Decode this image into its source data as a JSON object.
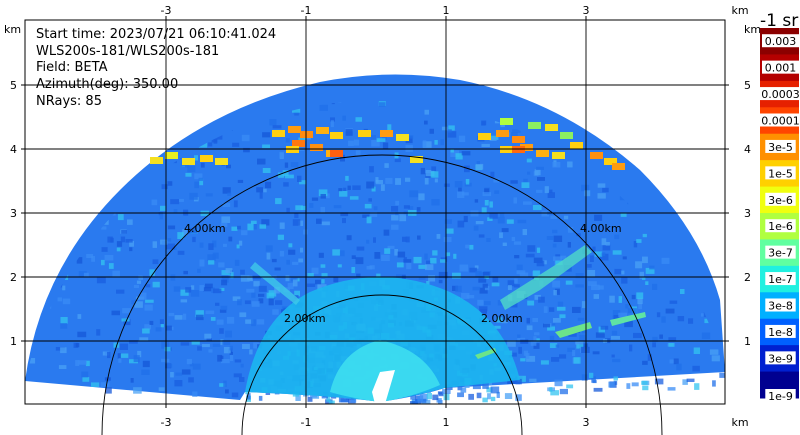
{
  "info": {
    "start_time": "Start time: 2023/07/21 06:10:41.024",
    "instrument": "WLS200s-181/WLS200s-181",
    "field": "Field: BETA",
    "azimuth": "Azimuth(deg): 350.00",
    "nrays": "NRays: 85"
  },
  "axes": {
    "unit": "km",
    "x_ticks": [
      "-3",
      "-1",
      "1",
      "3"
    ],
    "y_ticks": [
      "1",
      "2",
      "3",
      "4",
      "5"
    ]
  },
  "range_rings": [
    "2.00km",
    "4.00km"
  ],
  "colorbar": {
    "title": "-1 sr",
    "labels": [
      "0.003",
      "0.001",
      "0.0003",
      "0.0001",
      "3e-5",
      "1e-5",
      "3e-6",
      "1e-6",
      "3e-7",
      "1e-7",
      "3e-8",
      "1e-8",
      "3e-9",
      "1e-9"
    ],
    "colors": [
      "#8b0000",
      "#b40000",
      "#e62000",
      "#ff4500",
      "#ff9000",
      "#ffd000",
      "#f0ff10",
      "#b0ff40",
      "#60ffa0",
      "#20f0e0",
      "#00b0ff",
      "#0060ff",
      "#0020d0",
      "#000090"
    ]
  },
  "scan_colors": {
    "background_blue": "#2a7aef",
    "inner_cyan": "#18c6f0",
    "hot_yellow": "#f5e020",
    "hot_orange": "#ff8c10",
    "green_band": "#58e690"
  }
}
